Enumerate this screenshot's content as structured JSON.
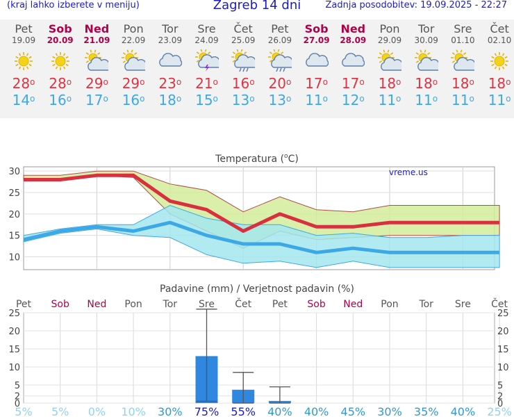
{
  "header": {
    "note": "(kraj lahko izberete v meniju)",
    "title": "Zagreb 14 dni",
    "updated": "Zadnja posodobitev: 19.09.2025 - 22:27"
  },
  "days": [
    {
      "name": "Pet",
      "date": "19.09",
      "weekend": false,
      "icon": "sun-icon",
      "max": 28,
      "min": 14,
      "max_label": "28",
      "min_label": "14"
    },
    {
      "name": "Sob",
      "date": "20.09",
      "weekend": true,
      "icon": "sun-icon",
      "max": 28,
      "min": 16,
      "max_label": "28",
      "min_label": "16"
    },
    {
      "name": "Ned",
      "date": "21.09",
      "weekend": true,
      "icon": "sun-cloud-icon",
      "max": 29,
      "min": 17,
      "max_label": "29",
      "min_label": "17"
    },
    {
      "name": "Pon",
      "date": "22.09",
      "weekend": false,
      "icon": "sun-cloud-icon",
      "max": 29,
      "min": 16,
      "max_label": "29",
      "min_label": "16"
    },
    {
      "name": "Tor",
      "date": "23.09",
      "weekend": false,
      "icon": "cloud-icon",
      "max": 23,
      "min": 18,
      "max_label": "23",
      "min_label": "18"
    },
    {
      "name": "Sre",
      "date": "24.09",
      "weekend": false,
      "icon": "sun-storm-icon",
      "max": 21,
      "min": 15,
      "max_label": "21",
      "min_label": "15"
    },
    {
      "name": "Čet",
      "date": "25.09",
      "weekend": false,
      "icon": "sun-rain-icon",
      "max": 16,
      "min": 13,
      "max_label": "16",
      "min_label": "13"
    },
    {
      "name": "Pet",
      "date": "26.09",
      "weekend": false,
      "icon": "sun-rain-icon",
      "max": 20,
      "min": 13,
      "max_label": "20",
      "min_label": "13"
    },
    {
      "name": "Sob",
      "date": "27.09",
      "weekend": true,
      "icon": "cloud-icon",
      "max": 17,
      "min": 11,
      "max_label": "17",
      "min_label": "11"
    },
    {
      "name": "Ned",
      "date": "28.09",
      "weekend": true,
      "icon": "cloud-icon",
      "max": 17,
      "min": 12,
      "max_label": "17",
      "min_label": "12"
    },
    {
      "name": "Pon",
      "date": "29.09",
      "weekend": false,
      "icon": "sun-cloud-icon",
      "max": 18,
      "min": 11,
      "max_label": "18",
      "min_label": "11"
    },
    {
      "name": "Tor",
      "date": "30.09",
      "weekend": false,
      "icon": "sun-cloud-icon",
      "max": 18,
      "min": 11,
      "max_label": "18",
      "min_label": "11"
    },
    {
      "name": "Sre",
      "date": "01.10",
      "weekend": false,
      "icon": "sun-cloud-icon",
      "max": 18,
      "min": 11,
      "max_label": "18",
      "min_label": "11"
    },
    {
      "name": "Čet",
      "date": "02.10",
      "weekend": false,
      "icon": "sun-icon",
      "max": 18,
      "min": 11,
      "max_label": "18",
      "min_label": "11"
    }
  ],
  "colors": {
    "max_line": "#d9303f",
    "min_line": "#3da8e6",
    "max_band": "#d4ec9a",
    "min_band": "#a3e6ee",
    "overlap": "#8fd08a",
    "bar": "#2f87e0",
    "weekend": "#b0004a"
  },
  "temp_chart": {
    "title_text": "Temperatura (",
    "title_deg": "o",
    "title_unit": "C)",
    "watermark": "vreme.us",
    "ylim": [
      7,
      31
    ],
    "yticks": [
      10,
      15,
      20,
      25,
      30
    ],
    "max_upper": [
      29,
      29,
      30,
      30,
      27,
      25.5,
      20.5,
      24,
      21,
      20.5,
      22,
      22,
      22,
      22
    ],
    "max_lower": [
      28,
      28,
      29,
      28.5,
      20,
      16,
      12,
      16,
      14,
      14.5,
      15,
      15,
      15,
      15
    ],
    "min_upper": [
      15,
      16.5,
      17.5,
      17.5,
      22,
      19,
      17.5,
      17.5,
      15,
      15.5,
      14.5,
      14.5,
      15,
      15
    ],
    "min_lower": [
      13.5,
      15.5,
      16.5,
      15,
      14.5,
      10.5,
      8.5,
      9,
      7.5,
      9,
      7.5,
      7.5,
      7.5,
      7.5
    ]
  },
  "precip_chart": {
    "title": "Padavine (mm) / Verjetnost padavin (%)",
    "ylim": [
      0,
      25
    ],
    "yticks": [
      0,
      2,
      5,
      10,
      15,
      20,
      25
    ],
    "amount_mm": [
      0,
      0,
      0,
      0,
      0,
      13,
      3.7,
      0.6,
      0,
      0,
      0,
      0,
      0,
      0
    ],
    "err_low": [
      null,
      null,
      null,
      null,
      null,
      0.5,
      0,
      0,
      null,
      null,
      null,
      null,
      null,
      null
    ],
    "err_high": [
      null,
      null,
      null,
      null,
      null,
      26,
      8.5,
      4.5,
      null,
      null,
      null,
      null,
      null,
      null
    ],
    "probability_labels": [
      "5%",
      "5%",
      "0%",
      "10%",
      "30%",
      "75%",
      "55%",
      "40%",
      "40%",
      "45%",
      "30%",
      "35%",
      "40%",
      "25%"
    ]
  }
}
